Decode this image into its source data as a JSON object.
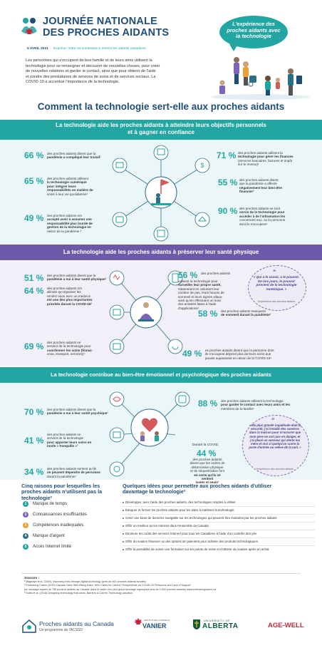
{
  "header": {
    "title_line1": "JOURNÉE NATIONALE",
    "title_line2": "DES PROCHES AIDANTS",
    "date": "6 AVRIL 2021",
    "tagline": "Exprimer notre reconnaissance envers les aidants canadiens",
    "bubble": "L'expérience des proches aidants avec la technologie"
  },
  "intro": [
    "Les personnes qui s'occupent de leur famille et de leurs amis utilisent la",
    "technologie pour se renseigner et découvrir de nouvelles choses, pour créer",
    "de nouvelles relations et garder le contact, ainsi que pour obtenir de l'aide",
    "et joindre des prestataires de services de soins et de services sociaux. La",
    "COVID-19 a accentué l'importance de la technologie."
  ],
  "main_title": "Comment la technologie sert-elle aux proches aidants",
  "section1": {
    "header": [
      "La technologie aide les proches aidants à atteindre leurs objectifs personnels",
      "et à gagner en confiance"
    ],
    "stats": [
      {
        "pct": "66 %",
        "lines": [
          "des proches aidants disent que la",
          "pandémie a compliqué leur travail¹"
        ]
      },
      {
        "pct": "65 %",
        "lines": [
          "des proches aidants utilisent",
          "la technologie numérique",
          "pour intégrer leurs",
          "responsabilités en matière de",
          "soins à leur vie quotidienne¹"
        ]
      },
      {
        "pct": "49 %",
        "lines": [
          "des proches aidants ont",
          "accepté avoir à assumer une",
          "responsabilité plus lourde de",
          "gestion de la technologie en",
          "raison de la pandémie ²"
        ]
      },
      {
        "pct": "71 %",
        "lines": [
          "des proches aidants utilisent la",
          "technologie pour gérer les finances",
          "(services bancaires, factures et impôt",
          "sur le revenu)¹"
        ]
      },
      {
        "pct": "55 %",
        "lines": [
          "des proches aidants disent",
          "que la pandémie a affecté",
          "négativement leur bien-être",
          "financier¹"
        ]
      },
      {
        "pct": "90 %",
        "lines": [
          "des proches aidants se sont",
          "servis de la technologie pour",
          "accéder à de l'information les",
          "concernant eux, ou la personne",
          "dont ils s'occupent¹"
        ]
      }
    ]
  },
  "section2": {
    "header": "La technologie aide les proches aidants à préserver leur santé physique",
    "stats": [
      {
        "pct": "51 %",
        "lines": [
          "des proches aidants disent que la",
          "pandémie a nui à leur santé physique¹"
        ]
      },
      {
        "pct": "64 %",
        "lines": [
          "des proches aidants ont",
          "dénoté qu'organiser les",
          "rendez-vous avec un médecin",
          "est une des plus importantes",
          "priorités durant la COVID-19¹"
        ]
      },
      {
        "pct": "69 %",
        "lines": [
          "des proches aidants se",
          "servent de la technologie pour",
          "coordonner les soins (finnaz-",
          "vous, transport, services)¹"
        ]
      },
      {
        "pct": "56 %",
        "lines": [
          "des proches aidants",
          "utilisent la technologie pour",
          "surveiller leur propre santé,",
          "notamment en calculant leur",
          "nombre de pas, leurs heures de",
          "sommeil et leurs signes vitaux,",
          "ainsi qu'en effectuant un suivi",
          "des activités faites à l'aide",
          "d'applications¹"
        ]
      },
      {
        "pct": "58 %",
        "lines": [
          "des proches aidants manquent",
          "de sommeil durant la pandémie¹"
        ]
      },
      {
        "pct": "49 %",
        "lines": [
          "es proches aidants disent que la personne dont",
          "ils s'occupent dépend plus de leurs soins que",
          "jamais auparavant en raison de la COVID-19¹"
        ]
      }
    ],
    "quote": "« Qui a le savoir, a le pouvoir. De nos jours, le pouvoir provient de la technologie numérique. »",
    "quote_source": "l'expérience des proches aidants"
  },
  "section3": {
    "header": "La technologie contribue au bien-être émotionnel et psychologique des proches aidants",
    "stats": [
      {
        "pct": "70 %",
        "lines": [
          "des proches aidants disent que la",
          "pandémie a nui à leur santé psychique¹"
        ]
      },
      {
        "pct": "41 %",
        "lines": [
          "des proches aidants se",
          "servent de la technologie",
          "pour apporter leurs soins en",
          "mode « tranquille »¹"
        ]
      },
      {
        "pct": "34 %",
        "lines": [
          "des proches aidants sentent qu'ils",
          "ne peuvent dépendre de personne",
          "durant la pandémie¹"
        ]
      },
      {
        "pct": "88 %",
        "lines": [
          "des proches aidants utilisent la technologie",
          "pour garder le contact avec leurs amis et les",
          "membres de la famille¹"
        ]
      },
      {
        "pct": "44 %",
        "lines": [
          "des proches aidants",
          "disent que les ordres de",
          "distanciation physique",
          "et de séquestration font",
          "en sorte qu'ils se sentent",
          "isolés et seuls¹"
        ]
      }
    ],
    "covid_label": "Durant la COVID,",
    "quote": "« Ma plus grande inquiétude était la sécurité; j'ai installé des caméras dans la maison pour m'assurer que mon père ne sort pas en danger, et j'ai placé un senseur qui alerte ma mère et moi si quelqu'un ouvre la porte d'entrée ou relève de la nuit. »",
    "quote_source": "l'expérience des proches aidants"
  },
  "reasons": {
    "title": "Cinq raisons pour lesquelles les proches aidants n'utilisent pas la technologie³",
    "items": [
      {
        "n": "1",
        "label": "Manque de temps",
        "color": "#23a6a2"
      },
      {
        "n": "2",
        "label": "Connaissances insuffisantes",
        "color": "#7b67b6"
      },
      {
        "n": "3",
        "label": "Compétences inadéquates",
        "color": "#f0a030"
      },
      {
        "n": "4",
        "label": "Manque d'argent",
        "color": "#2c6f88"
      },
      {
        "n": "5",
        "label": "Accès Internet limité",
        "color": "#23a6a2"
      }
    ]
  },
  "ideas": {
    "title": "Quelques idées pour permettre aux proches aidants d'utiliser davantage la technologie³",
    "items": [
      "Développer, avec l'aide des proches aidants, des technologies simples à utiliser",
      "Éduquer et former les proches aidants pour les aider à maîtriser la technologie",
      "Créer une base de données navigable sur les technologies qui peuvent être évaluées par les proches aidants",
      "Offrir un meilleur accès Internet dans l'ensemble du Canada",
      "Diminuer les coûts des services Internet pour tous les Canadiens à l'aide d'un contrôle des prix",
      "Offrir du soutien financier ou des options de paiement pour acheter des produits technologiques",
      "Offrir la possibilité de suivre une formation sur les points de vente et d'obtenir du soutien après un achat"
    ]
  },
  "sources": {
    "title": "Sources :",
    "lines": [
      "¹ Magnaye et al. (2020), Improving lives through digital technology (près de 400 proches aidants sondés)",
      "² Embracing Carers (2020) Canada Carer Well-Being Index, Who Cares for Carers? Perspectives on COVID-19 Pressures and Lack of Support",
      "  (un sondage auprès de 755 proches aidants au Canada, dans le cadre d'un plus grand sondage regroupant plus de 9 000 proches aidants) www.embracingcarers.ca",
      "³ Eales et al. (2018) Designing technology that cares: Barriers to Carers' Technology adoption"
    ]
  },
  "footer": {
    "org": "Proches aidants au Canada",
    "org_sub": "Un programme de l'ACSSD",
    "vanier": "VANIER",
    "vanier_sub": "INSTITUT DE LA FAMILLE",
    "alberta_top": "UNIVERSITY OF",
    "alberta": "ALBERTA",
    "agewell": "AGE-WELL"
  },
  "colors": {
    "teal": "#23a6a2",
    "navy": "#1f4e79",
    "purple": "#6c5aa8",
    "orange": "#f0a030"
  }
}
